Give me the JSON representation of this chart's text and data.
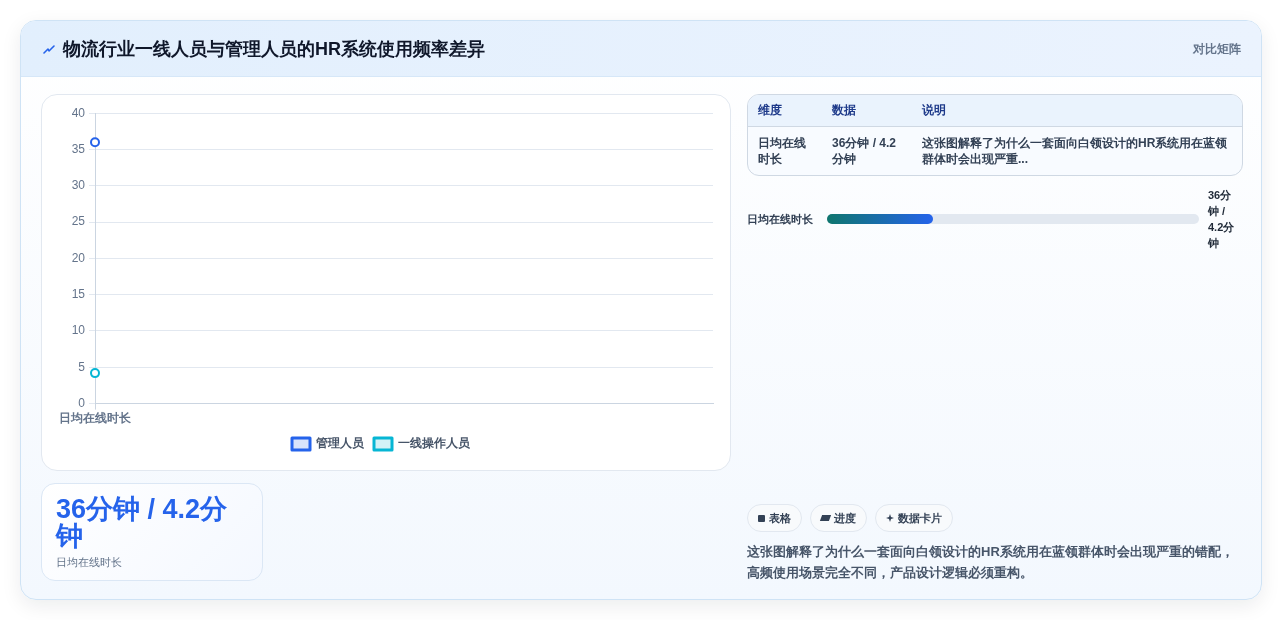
{
  "chart_data": {
    "type": "line",
    "title": "物流行业一线人员与管理人员的HR系统使用频率差异",
    "categories": [
      "日均在线时长"
    ],
    "series": [
      {
        "name": "管理人员",
        "color": "#2563eb",
        "values": [
          36
        ]
      },
      {
        "name": "一线操作人员",
        "color": "#06b6d4",
        "values": [
          4.2
        ]
      }
    ],
    "ylim": [
      0,
      40
    ],
    "yticks": [
      0,
      5,
      10,
      15,
      20,
      25,
      30,
      35,
      40
    ],
    "grid": "y",
    "legend": "bottom",
    "marker": "circle",
    "annotations": [
      "对比矩阵",
      "维度",
      "数据",
      "说明",
      "日均在线时长",
      "36分钟 / 4.2分钟",
      "这张图解释了为什么一套面向白领设计的HR系统用在蓝领群体时会出现严重...",
      "日均在线时长",
      "36分钟 / 4.2分钟",
      "36分钟 / 4.2分钟",
      "日均在线时长",
      "表格",
      "进度",
      "数据卡片",
      "这张图解释了为什么一套面向白领设计的HR系统用在蓝领群体时会出现严重的错配，高频使用场景完全不同，产品设计逻辑必须重构。"
    ]
  }
}
